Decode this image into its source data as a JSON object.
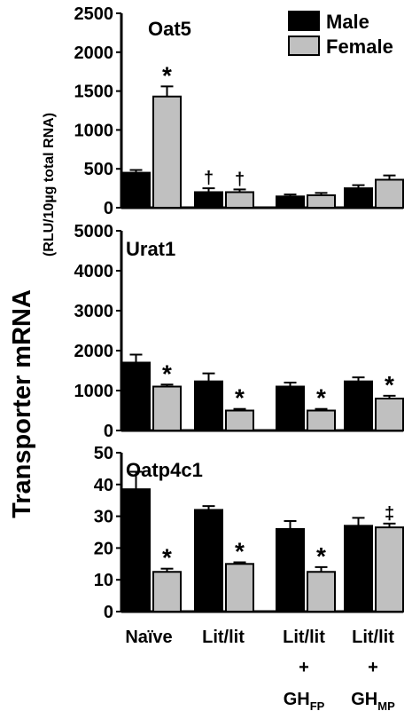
{
  "figure": {
    "y_axis_label_main": "Transporter mRNA",
    "y_axis_label_sub": "(RLU/10µg total RNA)",
    "legend": [
      {
        "label": "Male",
        "color": "#000000"
      },
      {
        "label": "Female",
        "color": "#c0c0c0"
      }
    ],
    "groups": [
      {
        "lines": [
          {
            "t": "Naïve"
          }
        ]
      },
      {
        "lines": [
          {
            "t": "Lit/lit"
          }
        ]
      },
      {
        "lines": [
          {
            "t": "Lit/lit"
          },
          {
            "t": "+"
          },
          {
            "t": "GH",
            "sub": "FP"
          }
        ]
      },
      {
        "lines": [
          {
            "t": "Lit/lit"
          },
          {
            "t": "+"
          },
          {
            "t": "GH",
            "sub": "MP"
          }
        ]
      }
    ]
  },
  "chart_data": [
    {
      "type": "bar",
      "title": "Oat5",
      "ylim": [
        0,
        2500
      ],
      "yticks": [
        0,
        500,
        1000,
        1500,
        2000,
        2500
      ],
      "categories": [
        "Naïve",
        "Lit/lit",
        "Lit/lit + GHFP",
        "Lit/lit + GHMP"
      ],
      "series": [
        {
          "name": "Male",
          "values": [
            450,
            200,
            145,
            250
          ],
          "errors": [
            35,
            50,
            25,
            40
          ],
          "marks": [
            "",
            "†",
            "",
            ""
          ]
        },
        {
          "name": "Female",
          "values": [
            1430,
            200,
            160,
            360
          ],
          "errors": [
            130,
            35,
            30,
            55
          ],
          "marks": [
            "*",
            "†",
            "",
            ""
          ]
        }
      ]
    },
    {
      "type": "bar",
      "title": "Urat1",
      "ylim": [
        0,
        5000
      ],
      "yticks": [
        0,
        1000,
        2000,
        3000,
        4000,
        5000
      ],
      "categories": [
        "Naïve",
        "Lit/lit",
        "Lit/lit + GHFP",
        "Lit/lit + GHMP"
      ],
      "series": [
        {
          "name": "Male",
          "values": [
            1700,
            1230,
            1100,
            1230
          ],
          "errors": [
            200,
            200,
            100,
            100
          ],
          "marks": [
            "",
            "",
            "",
            ""
          ]
        },
        {
          "name": "Female",
          "values": [
            1100,
            500,
            500,
            800
          ],
          "errors": [
            50,
            40,
            40,
            70
          ],
          "marks": [
            "*",
            "*",
            "*",
            "*"
          ]
        }
      ]
    },
    {
      "type": "bar",
      "title": "Oatp4c1",
      "ylim": [
        0,
        50
      ],
      "yticks": [
        0,
        10,
        20,
        30,
        40,
        50
      ],
      "categories": [
        "Naïve",
        "Lit/lit",
        "Lit/lit + GHFP",
        "Lit/lit + GHMP"
      ],
      "series": [
        {
          "name": "Male",
          "values": [
            38.5,
            32,
            26,
            27
          ],
          "errors": [
            5.5,
            1.2,
            2.5,
            2.5
          ],
          "marks": [
            "",
            "",
            "",
            ""
          ]
        },
        {
          "name": "Female",
          "values": [
            12.5,
            15,
            12.5,
            26.5
          ],
          "errors": [
            1,
            0.5,
            1.5,
            1.2
          ],
          "marks": [
            "*",
            "*",
            "*",
            "‡"
          ]
        }
      ]
    }
  ]
}
